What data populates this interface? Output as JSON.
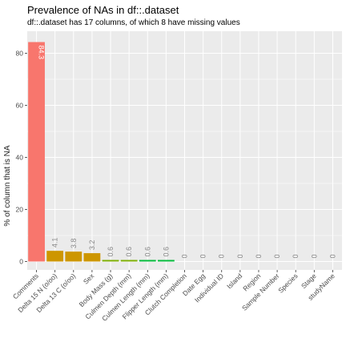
{
  "chart_data": {
    "type": "bar",
    "title": "Prevalence of NAs in df::.dataset",
    "subtitle": "df::.dataset has 17 columns, of which 8 have missing values",
    "xlabel": "",
    "ylabel": "% of column that is NA",
    "ylim": [
      0,
      90
    ],
    "yticks": [
      0,
      20,
      40,
      60,
      80
    ],
    "grid": true,
    "categories": [
      "Comments",
      "Delta 15 N (o/oo)",
      "Delta 13 C (o/oo)",
      "Sex",
      "Body Mass (g)",
      "Culmen Depth (mm)",
      "Culmen Length (mm)",
      "Flipper Length (mm)",
      "Clutch Completion",
      "Date Egg",
      "Individual ID",
      "Island",
      "Region",
      "Sample Number",
      "Species",
      "Stage",
      "studyName"
    ],
    "values": [
      84.3,
      4.1,
      3.8,
      3.2,
      0.6,
      0.6,
      0.6,
      0.6,
      0,
      0,
      0,
      0,
      0,
      0,
      0,
      0,
      0
    ],
    "labels": [
      "84.3",
      "4.1",
      "3.8",
      "3.2",
      "0.6",
      "0.6",
      "0.6",
      "0.6",
      "0",
      "0",
      "0",
      "0",
      "0",
      "0",
      "0",
      "0",
      "0"
    ],
    "colors": [
      "#F8766D",
      "#CD9600",
      "#CD9600",
      "#CD9600",
      "#7CAE00",
      "#7CAE00",
      "#00BA38",
      "#00BA38",
      "#00BE67",
      "#00BFC4",
      "#00A9FF",
      "#00A9FF",
      "#8494FF",
      "#C77CFF",
      "#E76BF3",
      "#FF61C3",
      "#FF61C3"
    ],
    "panel_background": "#EBEBEB",
    "grid_color": "#FFFFFF",
    "label_colors": {
      "inside": "#FFFFFF",
      "outside": "#888888"
    }
  }
}
